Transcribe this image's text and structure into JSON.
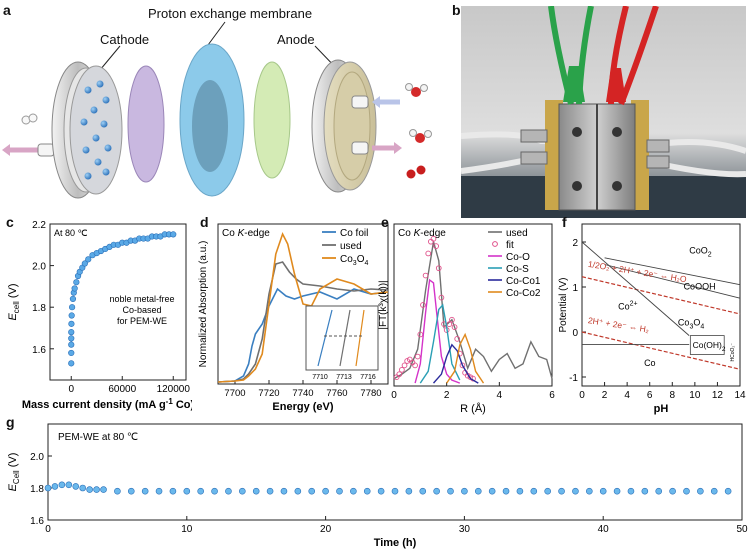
{
  "panel_a": {
    "label": "a",
    "membrane_label": "Proton exchange membrane",
    "cathode_label": "Cathode",
    "anode_label": "Anode"
  },
  "panel_b": {
    "label": "b"
  },
  "colors": {
    "blue_series": "#3a7fc1",
    "gray_series": "#707070",
    "orange_series": "#e08a1e",
    "magenta_series": "#d433c9",
    "teal_series": "#2a9fb5",
    "navy_series": "#2b2b9c",
    "red_annot": "#c0392b",
    "membrane": "#7fc6e8",
    "electrode_purple": "#c9b8e0",
    "electrode_green": "#d4ebb5"
  },
  "chart_data": [
    {
      "id": "c",
      "type": "scatter",
      "panel_label": "c",
      "annotation": "At 80 ℃",
      "note_lines": [
        "noble metal-free",
        "Co-based",
        "for PEM-WE"
      ],
      "xlabel_text": "Mass current density (mA g",
      "xlabel_sup": "-1",
      "xlabel_end": " Co)",
      "ylabel_main": "E",
      "ylabel_sub": "cell",
      "ylabel_unit": " (V)",
      "xlim": [
        -25000,
        135000
      ],
      "ylim": [
        1.45,
        2.2
      ],
      "xticks": [
        0,
        60000,
        120000
      ],
      "xtick_labels": [
        "0",
        "60000",
        "120000"
      ],
      "yticks": [
        1.6,
        1.8,
        2.0,
        2.2
      ],
      "ytick_labels": [
        "1.6",
        "1.8",
        "2.0",
        "2.2"
      ],
      "x": [
        0,
        0,
        0,
        0,
        0,
        200,
        500,
        1000,
        2000,
        3000,
        4000,
        6000,
        8000,
        10000,
        13000,
        16000,
        20000,
        25000,
        30000,
        35000,
        40000,
        45000,
        50000,
        55000,
        60000,
        65000,
        70000,
        75000,
        80000,
        85000,
        90000,
        95000,
        100000,
        105000,
        110000,
        115000,
        120000
      ],
      "y": [
        1.53,
        1.58,
        1.62,
        1.65,
        1.68,
        1.72,
        1.76,
        1.8,
        1.84,
        1.87,
        1.89,
        1.92,
        1.95,
        1.97,
        1.99,
        2.01,
        2.03,
        2.05,
        2.06,
        2.07,
        2.08,
        2.09,
        2.1,
        2.1,
        2.11,
        2.11,
        2.12,
        2.12,
        2.13,
        2.13,
        2.13,
        2.14,
        2.14,
        2.14,
        2.15,
        2.15,
        2.15
      ]
    },
    {
      "id": "d",
      "type": "line",
      "panel_label": "d",
      "title_main": "Co ",
      "title_italic": "K",
      "title_end": "-edge",
      "xlabel": "Energy (eV)",
      "ylabel": "Normalized Absorption (a.u.)",
      "xlim": [
        7690,
        7790
      ],
      "ylim": [
        0,
        1.6
      ],
      "xticks": [
        7700,
        7720,
        7740,
        7760,
        7780
      ],
      "xtick_labels": [
        "7700",
        "7720",
        "7740",
        "7760",
        "7780"
      ],
      "legend": [
        "Co foil",
        "used"
      ],
      "legend_co3o4_main": "Co",
      "legend_co3o4_sub1": "3",
      "legend_co3o4_mid": "O",
      "legend_co3o4_sub2": "4",
      "inset_ticks": [
        "7710",
        "7713",
        "7716"
      ],
      "series": [
        {
          "name": "Co foil",
          "x": [
            7690,
            7700,
            7705,
            7708,
            7710,
            7712,
            7716,
            7720,
            7725,
            7730,
            7735,
            7740,
            7750,
            7760,
            7770,
            7780,
            7790
          ],
          "y": [
            0.02,
            0.03,
            0.08,
            0.2,
            0.38,
            0.5,
            0.6,
            0.78,
            0.95,
            0.88,
            0.85,
            0.88,
            0.92,
            0.85,
            0.95,
            0.9,
            0.92
          ]
        },
        {
          "name": "used",
          "x": [
            7690,
            7700,
            7705,
            7708,
            7712,
            7716,
            7720,
            7724,
            7728,
            7732,
            7736,
            7740,
            7750,
            7760,
            7770,
            7780,
            7790
          ],
          "y": [
            0.02,
            0.03,
            0.05,
            0.1,
            0.2,
            0.45,
            0.9,
            1.2,
            1.22,
            1.12,
            1.05,
            1.0,
            0.98,
            0.95,
            0.93,
            0.95,
            0.94
          ]
        },
        {
          "name": "Co3O4",
          "x": [
            7690,
            7700,
            7705,
            7708,
            7712,
            7716,
            7720,
            7724,
            7728,
            7731,
            7735,
            7740,
            7745,
            7750,
            7760,
            7770,
            7780,
            7790
          ],
          "y": [
            0.02,
            0.03,
            0.04,
            0.08,
            0.15,
            0.3,
            0.8,
            1.3,
            1.5,
            1.4,
            1.1,
            0.8,
            0.78,
            0.95,
            1.05,
            1.0,
            0.9,
            0.92
          ]
        }
      ]
    },
    {
      "id": "e",
      "type": "line",
      "panel_label": "e",
      "title_main": "Co ",
      "title_italic": "K",
      "title_end": "-edge",
      "xlabel": "R (Å)",
      "ylabel": "|FT(k³χ(k))|",
      "xlim": [
        0,
        6
      ],
      "ylim": [
        0,
        1.1
      ],
      "xticks": [
        0,
        2,
        4,
        6
      ],
      "xtick_labels": [
        "0",
        "2",
        "4",
        "6"
      ],
      "legend": [
        "used",
        "fit",
        "Co-O",
        "Co-S",
        "Co-Co1",
        "Co-Co2"
      ],
      "series": [
        {
          "name": "used",
          "x": [
            0,
            0.3,
            0.6,
            0.9,
            1.2,
            1.5,
            1.7,
            1.9,
            2.2,
            2.5,
            2.8,
            3.1,
            3.4,
            3.7,
            4.0,
            4.3,
            4.6,
            4.9,
            5.2,
            5.5,
            5.8,
            6.0
          ],
          "y": [
            0.05,
            0.08,
            0.12,
            0.25,
            0.65,
            0.98,
            0.85,
            0.4,
            0.45,
            0.3,
            0.12,
            0.25,
            0.2,
            0.1,
            0.18,
            0.22,
            0.12,
            0.15,
            0.3,
            0.2,
            0.18,
            0.05
          ]
        },
        {
          "name": "fit",
          "x": [
            0.1,
            0.2,
            0.3,
            0.4,
            0.5,
            0.6,
            0.7,
            0.8,
            0.9,
            1.0,
            1.1,
            1.2,
            1.3,
            1.4,
            1.5,
            1.6,
            1.7,
            1.8,
            1.9,
            2.0,
            2.1,
            2.2,
            2.3,
            2.4,
            2.5,
            2.6,
            2.7,
            2.8,
            2.9,
            3.0
          ],
          "y": [
            0.06,
            0.08,
            0.11,
            0.14,
            0.17,
            0.18,
            0.16,
            0.14,
            0.2,
            0.35,
            0.55,
            0.75,
            0.9,
            0.98,
            1.0,
            0.95,
            0.8,
            0.6,
            0.42,
            0.38,
            0.42,
            0.45,
            0.4,
            0.32,
            0.22,
            0.14,
            0.09,
            0.07,
            0.06,
            0.05
          ]
        },
        {
          "name": "Co-O",
          "x": [
            0.8,
            1.0,
            1.2,
            1.35,
            1.5,
            1.65,
            1.8,
            2.0,
            2.2,
            2.5
          ],
          "y": [
            0.02,
            0.15,
            0.5,
            0.72,
            0.7,
            0.45,
            0.2,
            0.08,
            0.04,
            0.02
          ]
        },
        {
          "name": "Co-S",
          "x": [
            1.0,
            1.3,
            1.5,
            1.7,
            1.85,
            2.0,
            2.2,
            2.5
          ],
          "y": [
            0.02,
            0.1,
            0.3,
            0.52,
            0.55,
            0.4,
            0.15,
            0.04
          ]
        },
        {
          "name": "Co-Co1",
          "x": [
            1.5,
            1.8,
            2.0,
            2.2,
            2.4,
            2.6,
            2.9,
            3.2
          ],
          "y": [
            0.02,
            0.08,
            0.2,
            0.28,
            0.24,
            0.14,
            0.05,
            0.02
          ]
        },
        {
          "name": "Co-Co2",
          "x": [
            2.0,
            2.3,
            2.5,
            2.7,
            2.9,
            3.1,
            3.4
          ],
          "y": [
            0.02,
            0.1,
            0.28,
            0.35,
            0.25,
            0.1,
            0.02
          ]
        }
      ]
    },
    {
      "id": "f",
      "type": "line",
      "panel_label": "f",
      "xlabel": "pH",
      "ylabel": "Potential (V)",
      "xlim": [
        0,
        14
      ],
      "ylim": [
        -1.2,
        2.4
      ],
      "xticks": [
        0,
        2,
        4,
        6,
        8,
        10,
        12,
        14
      ],
      "xtick_labels": [
        "0",
        "2",
        "4",
        "6",
        "8",
        "10",
        "12",
        "14"
      ],
      "yticks": [
        -1,
        0,
        1,
        2
      ],
      "ytick_labels": [
        "-1",
        "0",
        "1",
        "2"
      ],
      "region_main": {
        "co2plus": "Co",
        "co2plus_sup": "2+",
        "co": "Co",
        "cooh": "CoOOH",
        "coo2": "CoO",
        "coo2_sub": "2",
        "co3o4_main": "Co",
        "co3o4_sub1": "3",
        "co3o4_mid": "O",
        "co3o4_sub2": "4",
        "cooh2_main": "Co(OH)",
        "cooh2_sub": "2",
        "hco2": "HCoO₂⁻"
      },
      "o2_line_text": "1/2O₂ + 2H⁺ + 2e⁻ ⇔ H₂O",
      "h2_line_text": "2H⁺ + 2e⁻ ⇔ H₂",
      "series": [
        {
          "name": "O2/H2O",
          "x": [
            0,
            14
          ],
          "y": [
            1.23,
            0.4
          ]
        },
        {
          "name": "H+/H2",
          "x": [
            0,
            14
          ],
          "y": [
            0.0,
            -0.83
          ]
        },
        {
          "name": "Co2+/Co",
          "x": [
            0,
            9.5
          ],
          "y": [
            -0.28,
            -0.28
          ]
        },
        {
          "name": "Co3O4/Co2+",
          "x": [
            0,
            9.5
          ],
          "y": [
            2.0,
            -0.08
          ]
        },
        {
          "name": "CoOOH/Co3O4",
          "x": [
            2,
            14
          ],
          "y": [
            1.5,
            0.75
          ]
        },
        {
          "name": "CoO2/CoOOH",
          "x": [
            2,
            14
          ],
          "y": [
            1.65,
            1.05
          ]
        }
      ]
    },
    {
      "id": "g",
      "type": "scatter",
      "panel_label": "g",
      "annotation": "PEM-WE at 80 ℃",
      "xlabel": "Time (h)",
      "ylabel_main": "E",
      "ylabel_sub": "Cell",
      "ylabel_unit": " (V)",
      "xlim": [
        0,
        50
      ],
      "ylim": [
        1.6,
        2.2
      ],
      "xticks": [
        0,
        10,
        20,
        30,
        40,
        50
      ],
      "xtick_labels": [
        "0",
        "10",
        "20",
        "30",
        "40",
        "50"
      ],
      "yticks": [
        1.6,
        1.8,
        2.0
      ],
      "ytick_labels": [
        "1.6",
        "1.8",
        "2.0"
      ],
      "x": [
        0,
        0.5,
        1.0,
        1.5,
        2.0,
        2.5,
        3.0,
        3.5,
        4,
        5,
        6,
        7,
        8,
        9,
        10,
        11,
        12,
        13,
        14,
        15,
        16,
        17,
        18,
        19,
        20,
        21,
        22,
        23,
        24,
        25,
        26,
        27,
        28,
        29,
        30,
        31,
        32,
        33,
        34,
        35,
        36,
        37,
        38,
        39,
        40,
        41,
        42,
        43,
        44,
        45,
        46,
        47,
        48,
        49
      ],
      "y": [
        1.8,
        1.81,
        1.82,
        1.82,
        1.81,
        1.8,
        1.79,
        1.79,
        1.79,
        1.78,
        1.78,
        1.78,
        1.78,
        1.78,
        1.78,
        1.78,
        1.78,
        1.78,
        1.78,
        1.78,
        1.78,
        1.78,
        1.78,
        1.78,
        1.78,
        1.78,
        1.78,
        1.78,
        1.78,
        1.78,
        1.78,
        1.78,
        1.78,
        1.78,
        1.78,
        1.78,
        1.78,
        1.78,
        1.78,
        1.78,
        1.78,
        1.78,
        1.78,
        1.78,
        1.78,
        1.78,
        1.78,
        1.78,
        1.78,
        1.78,
        1.78,
        1.78,
        1.78,
        1.78
      ]
    }
  ]
}
